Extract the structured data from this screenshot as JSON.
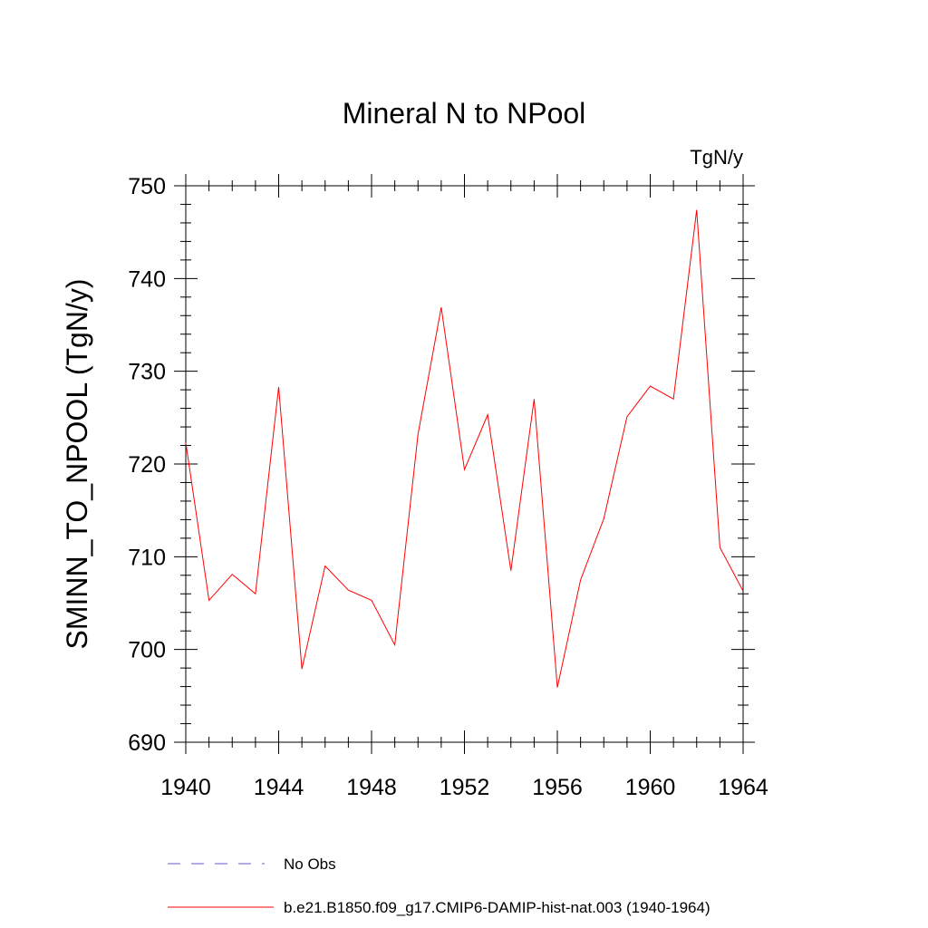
{
  "chart_data": {
    "type": "line",
    "title": "Mineral N to NPool",
    "units": "TgN/y",
    "ylabel": "SMINN_TO_NPOOL  (TgN/y)",
    "xlabel": "",
    "xlim": [
      1940,
      1964
    ],
    "ylim": [
      690,
      750
    ],
    "x_ticks": [
      1940,
      1944,
      1948,
      1952,
      1956,
      1960,
      1964
    ],
    "y_ticks": [
      690,
      700,
      710,
      720,
      730,
      740,
      750
    ],
    "series": [
      {
        "name": "b.e21.B1850.f09_g17.CMIP6-DAMIP-hist-nat.003 (1940-1964)",
        "color": "#ff0000",
        "x": [
          1940,
          1941,
          1942,
          1943,
          1944,
          1945,
          1946,
          1947,
          1948,
          1949,
          1950,
          1951,
          1952,
          1953,
          1954,
          1955,
          1956,
          1957,
          1958,
          1959,
          1960,
          1961,
          1962,
          1963,
          1964
        ],
        "y": [
          722.3,
          705.3,
          708.1,
          706.0,
          728.3,
          697.9,
          709.0,
          706.4,
          705.3,
          700.5,
          723.2,
          736.9,
          719.4,
          725.3,
          708.5,
          727.0,
          695.9,
          707.5,
          714.1,
          725.1,
          728.4,
          727.0,
          747.4,
          711.0,
          706.3
        ]
      }
    ],
    "legend": [
      {
        "label": "No Obs",
        "style": "dashed",
        "color": "#6a5acd"
      },
      {
        "label": "b.e21.B1850.f09_g17.CMIP6-DAMIP-hist-nat.003 (1940-1964)",
        "style": "solid",
        "color": "#ff0000"
      }
    ],
    "legend_placement": "bottom",
    "grid": false
  }
}
